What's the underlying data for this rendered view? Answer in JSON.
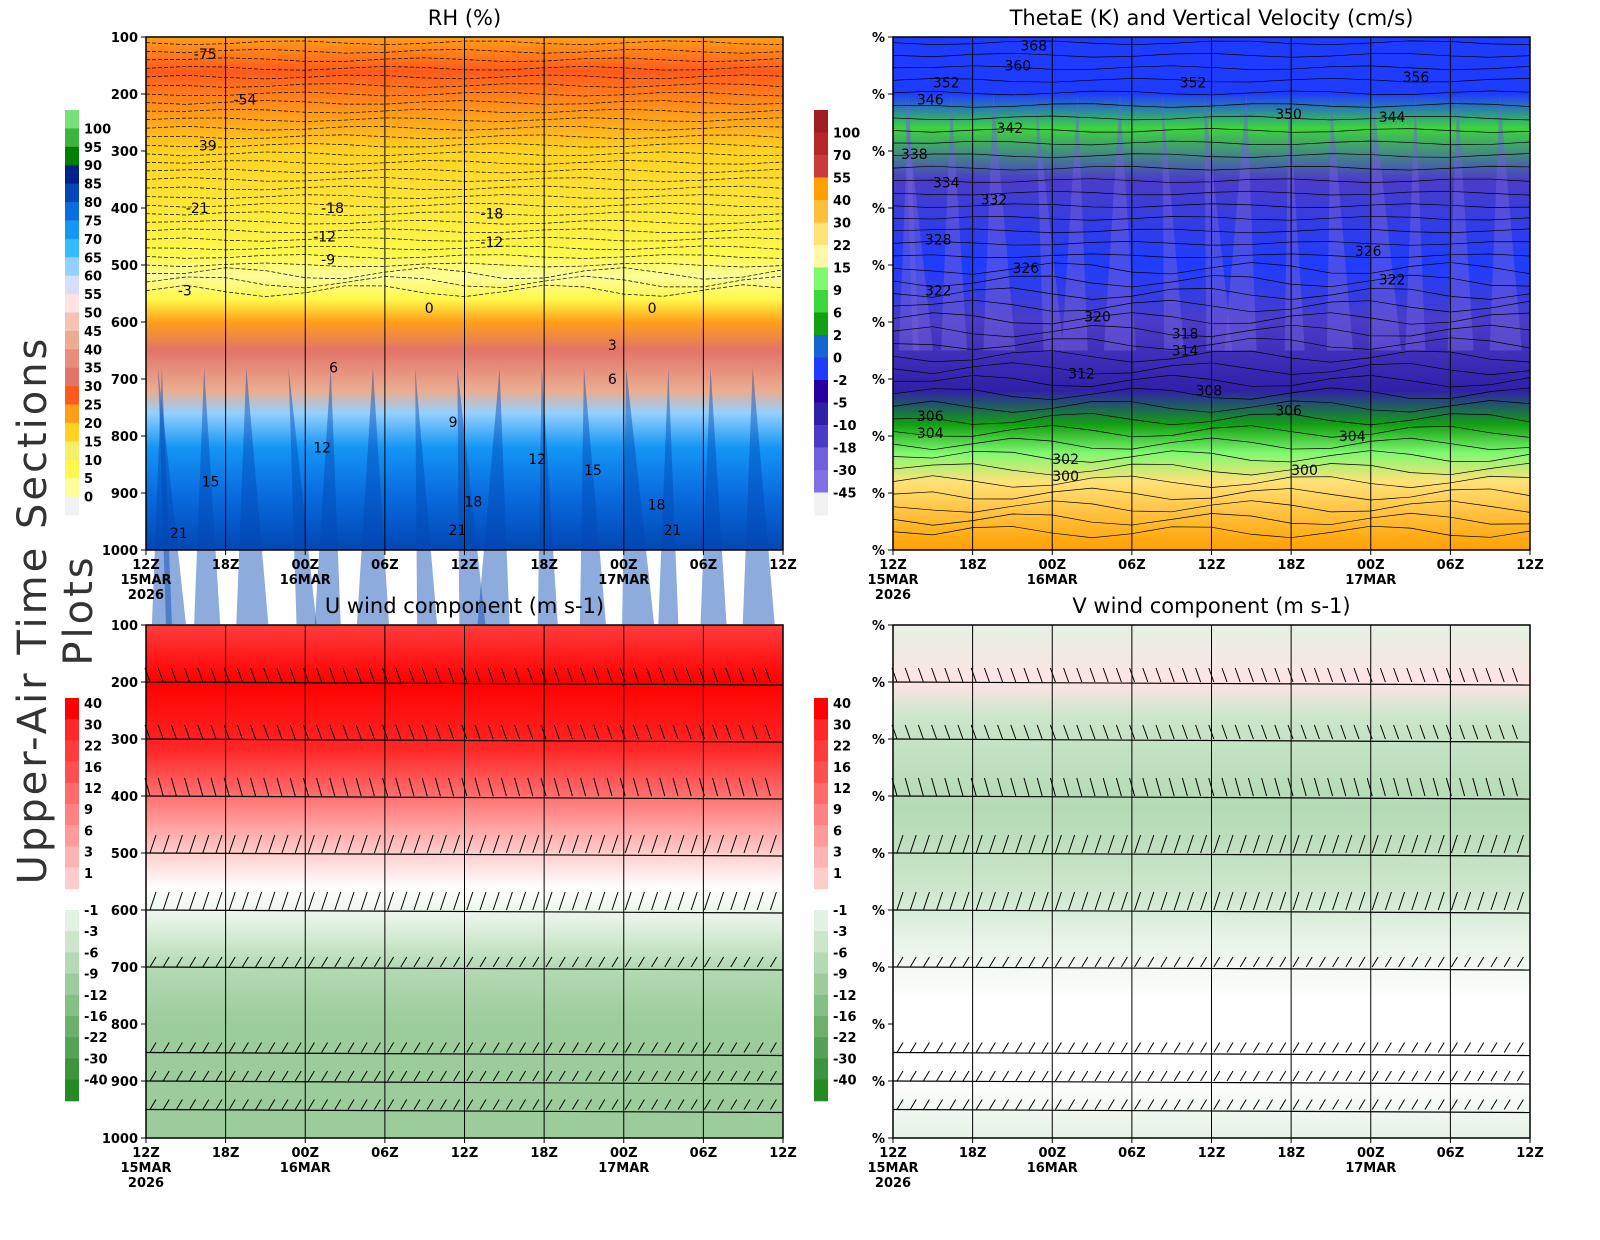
{
  "side_title": "Upper-Air Time Sections Plots",
  "x_ticks": [
    "12Z",
    "18Z",
    "00Z",
    "06Z",
    "12Z",
    "18Z",
    "00Z",
    "06Z",
    "12Z"
  ],
  "x_dates": [
    {
      "index": 0,
      "label": "15MAR",
      "year": "2026"
    },
    {
      "index": 2,
      "label": "16MAR"
    },
    {
      "index": 6,
      "label": "17MAR"
    }
  ],
  "chart_data": [
    {
      "type": "heatmap",
      "title": "RH (%)",
      "ylabel": "",
      "y_ticks": [
        "100",
        "200",
        "300",
        "400",
        "500",
        "600",
        "700",
        "800",
        "900",
        "1000"
      ],
      "ylim": [
        1000,
        100
      ],
      "colorbar": {
        "levels": [
          "100",
          "95",
          "90",
          "85",
          "80",
          "75",
          "70",
          "65",
          "60",
          "55",
          "50",
          "45",
          "40",
          "35",
          "30",
          "25",
          "20",
          "15",
          "10",
          "5",
          "0"
        ],
        "colors": [
          "#76e17a",
          "#3db53d",
          "#008000",
          "#00208c",
          "#0247b4",
          "#0a6de0",
          "#1496f5",
          "#33baff",
          "#94d0ff",
          "#d6deff",
          "#ffe3e3",
          "#f4c4b0",
          "#ebac8f",
          "#e78d7c",
          "#e2746a",
          "#ff5a1c",
          "#ff9f19",
          "#ffd222",
          "#f4f068",
          "#fef84a",
          "#fdfd9a",
          "#f2f2f2"
        ]
      },
      "contour_labels": [
        {
          "t": 0.6,
          "p": 130,
          "v": "-75"
        },
        {
          "t": 1.1,
          "p": 210,
          "v": "-54"
        },
        {
          "t": 0.6,
          "p": 290,
          "v": "-39"
        },
        {
          "t": 0.5,
          "p": 400,
          "v": "-21"
        },
        {
          "t": 0.4,
          "p": 545,
          "v": "-3"
        },
        {
          "t": 2.2,
          "p": 400,
          "v": "-18"
        },
        {
          "t": 2.1,
          "p": 450,
          "v": "-12"
        },
        {
          "t": 2.2,
          "p": 490,
          "v": "-9"
        },
        {
          "t": 4.2,
          "p": 410,
          "v": "-18"
        },
        {
          "t": 4.2,
          "p": 460,
          "v": "-12"
        },
        {
          "t": 3.5,
          "p": 575,
          "v": "0"
        },
        {
          "t": 6.3,
          "p": 575,
          "v": "0"
        },
        {
          "t": 2.3,
          "p": 680,
          "v": "6"
        },
        {
          "t": 3.8,
          "p": 775,
          "v": "9"
        },
        {
          "t": 2.1,
          "p": 820,
          "v": "12"
        },
        {
          "t": 4.8,
          "p": 840,
          "v": "12"
        },
        {
          "t": 0.7,
          "p": 880,
          "v": "15"
        },
        {
          "t": 5.5,
          "p": 860,
          "v": "15"
        },
        {
          "t": 4,
          "p": 915,
          "v": "18"
        },
        {
          "t": 6.3,
          "p": 920,
          "v": "18"
        },
        {
          "t": 0.3,
          "p": 970,
          "v": "21"
        },
        {
          "t": 3.8,
          "p": 965,
          "v": "21"
        },
        {
          "t": 6.5,
          "p": 965,
          "v": "21"
        },
        {
          "t": 5.8,
          "p": 640,
          "v": "3"
        },
        {
          "t": 5.8,
          "p": 700,
          "v": "6"
        }
      ]
    },
    {
      "type": "heatmap",
      "title": "ThetaE (K) and Vertical Velocity (cm/s)",
      "y_tick_label": "%",
      "colorbar": {
        "levels": [
          "100",
          "70",
          "55",
          "40",
          "30",
          "22",
          "15",
          "9",
          "6",
          "2",
          "0",
          "-2",
          "-5",
          "-10",
          "-18",
          "-30",
          "-45"
        ],
        "colors": [
          "#a01e22",
          "#b62828",
          "#c93c3c",
          "#ffa000",
          "#ffbf3a",
          "#ffe278",
          "#fff8a8",
          "#80f870",
          "#3cd53c",
          "#12a012",
          "#1466d2",
          "#1e3cff",
          "#2800a0",
          "#3020a8",
          "#4b3cc8",
          "#7060dc",
          "#8270e6",
          "#f2f2f2"
        ]
      },
      "contour_labels": [
        {
          "t": 1.6,
          "p": 115,
          "v": "368"
        },
        {
          "t": 1.4,
          "p": 150,
          "v": "360"
        },
        {
          "t": 0.5,
          "p": 180,
          "v": "352"
        },
        {
          "t": 0.3,
          "p": 210,
          "v": "346"
        },
        {
          "t": 1.3,
          "p": 260,
          "v": "342"
        },
        {
          "t": 0.1,
          "p": 305,
          "v": "338"
        },
        {
          "t": 0.5,
          "p": 355,
          "v": "334"
        },
        {
          "t": 1.1,
          "p": 385,
          "v": "332"
        },
        {
          "t": 0.4,
          "p": 455,
          "v": "328"
        },
        {
          "t": 1.5,
          "p": 505,
          "v": "326"
        },
        {
          "t": 0.4,
          "p": 545,
          "v": "322"
        },
        {
          "t": 2.4,
          "p": 590,
          "v": "320"
        },
        {
          "t": 3.5,
          "p": 620,
          "v": "318"
        },
        {
          "t": 3.5,
          "p": 650,
          "v": "314"
        },
        {
          "t": 2.2,
          "p": 690,
          "v": "312"
        },
        {
          "t": 3.8,
          "p": 720,
          "v": "308"
        },
        {
          "t": 4.8,
          "p": 755,
          "v": "306"
        },
        {
          "t": 0.3,
          "p": 765,
          "v": "306"
        },
        {
          "t": 0.3,
          "p": 795,
          "v": "304"
        },
        {
          "t": 5.6,
          "p": 800,
          "v": "304"
        },
        {
          "t": 2,
          "p": 840,
          "v": "302"
        },
        {
          "t": 2,
          "p": 870,
          "v": "300"
        },
        {
          "t": 5,
          "p": 860,
          "v": "300"
        },
        {
          "t": 4.8,
          "p": 235,
          "v": "350"
        },
        {
          "t": 6.4,
          "p": 170,
          "v": "356"
        },
        {
          "t": 3.6,
          "p": 180,
          "v": "352"
        },
        {
          "t": 6.1,
          "p": 240,
          "v": "344"
        },
        {
          "t": 5.8,
          "p": 475,
          "v": "326"
        },
        {
          "t": 6.1,
          "p": 525,
          "v": "322"
        }
      ]
    },
    {
      "type": "heatmap",
      "title": "U wind component (m s-1)",
      "y_ticks": [
        "100",
        "200",
        "300",
        "400",
        "500",
        "600",
        "700",
        "800",
        "900",
        "1000"
      ],
      "colorbar": {
        "levels": [
          "40",
          "30",
          "22",
          "16",
          "12",
          "9",
          "6",
          "3",
          "1",
          "-1",
          "-3",
          "-6",
          "-9",
          "-12",
          "-16",
          "-22",
          "-30",
          "-40"
        ],
        "colors": [
          "#ff0000",
          "#ff2828",
          "#ff3c3c",
          "#ff5050",
          "#ff6a6a",
          "#ff8282",
          "#ff9a9a",
          "#ffb4b4",
          "#ffcccc",
          "#ffe4e4",
          "#ffffff",
          "#e4f2e4",
          "#cce6cc",
          "#b4dab4",
          "#9ccc9c",
          "#84c084",
          "#6cb06c",
          "#54a254",
          "#3c943c",
          "#248a24"
        ]
      },
      "wind_barb_levels": [
        200,
        300,
        400,
        500,
        600,
        700,
        850,
        900,
        950
      ]
    },
    {
      "type": "heatmap",
      "title": "V wind component (m s-1)",
      "y_tick_label": "%",
      "colorbar": {
        "levels": [
          "40",
          "30",
          "22",
          "16",
          "12",
          "9",
          "6",
          "3",
          "1",
          "-1",
          "-3",
          "-6",
          "-9",
          "-12",
          "-16",
          "-22",
          "-30",
          "-40"
        ]
      },
      "wind_barb_levels": [
        200,
        300,
        400,
        500,
        600,
        700,
        850,
        900,
        950
      ]
    }
  ]
}
